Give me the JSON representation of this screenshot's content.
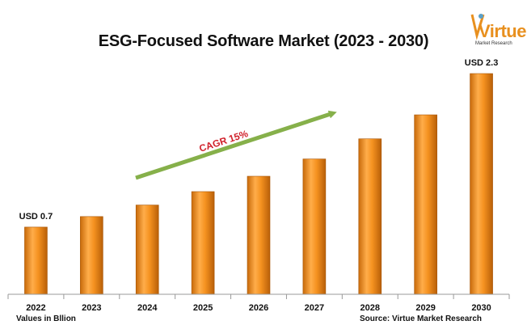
{
  "title": "ESG-Focused Software Market (2023 - 2030)",
  "footer": {
    "left": "Values in Bllion",
    "right": "Source: Virtue Market Research"
  },
  "logo": {
    "word": "Virtue",
    "tagline": "Market Research",
    "color": "#e8901f"
  },
  "chart_data": {
    "type": "bar",
    "categories": [
      "2022",
      "2023",
      "2024",
      "2025",
      "2026",
      "2027",
      "2028",
      "2029",
      "2030"
    ],
    "values": [
      0.7,
      0.81,
      0.93,
      1.07,
      1.23,
      1.41,
      1.62,
      1.87,
      2.3
    ],
    "data_labels": [
      {
        "index": 0,
        "text": "USD 0.7"
      },
      {
        "index": 8,
        "text": "USD 2.3"
      }
    ],
    "annotation": "CAGR 15%",
    "ylim": [
      0,
      2.3
    ],
    "bar_color": "#f28c1c",
    "arrow_color": "#86b04a",
    "annotation_color": "#d0202a",
    "grid": false
  }
}
